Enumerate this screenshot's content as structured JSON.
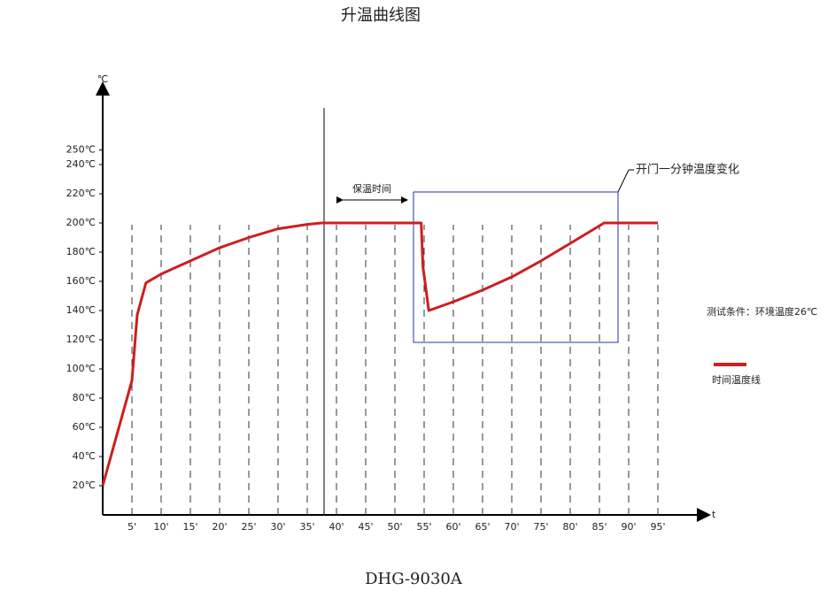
{
  "chart_data": {
    "type": "line",
    "title": "升温曲线图",
    "footer": "DHG-9030A",
    "x_label": "t",
    "y_label": "℃",
    "x": [
      0,
      5,
      5.9,
      7.4,
      10,
      15,
      20,
      25,
      30,
      35,
      37.5,
      40,
      45,
      50,
      54.5,
      54.8,
      55.8,
      60,
      65,
      70,
      75,
      80,
      85.8,
      90,
      95
    ],
    "series": [
      {
        "name": "时间温度线",
        "color": "#cc1f1f",
        "values": [
          20,
          92,
          137,
          159,
          165,
          174,
          183,
          190,
          196,
          199,
          200,
          200,
          200,
          200,
          200,
          170,
          140,
          146,
          154,
          163,
          174,
          186,
          200,
          200,
          200
        ]
      }
    ],
    "xlim": [
      0,
      104
    ],
    "ylim": [
      0,
      292
    ],
    "xticks": [
      {
        "value": 5,
        "label": "5'"
      },
      {
        "value": 10,
        "label": "10'"
      },
      {
        "value": 15,
        "label": "15'"
      },
      {
        "value": 20,
        "label": "20'"
      },
      {
        "value": 25,
        "label": "25'"
      },
      {
        "value": 30,
        "label": "30'"
      },
      {
        "value": 35,
        "label": "35'"
      },
      {
        "value": 40,
        "label": "40'"
      },
      {
        "value": 45,
        "label": "45'"
      },
      {
        "value": 50,
        "label": "50'"
      },
      {
        "value": 55,
        "label": "55'"
      },
      {
        "value": 60,
        "label": "60'"
      },
      {
        "value": 65,
        "label": "65'"
      },
      {
        "value": 70,
        "label": "70'"
      },
      {
        "value": 75,
        "label": "75'"
      },
      {
        "value": 80,
        "label": "80'"
      },
      {
        "value": 85,
        "label": "85'"
      },
      {
        "value": 90,
        "label": "90'"
      },
      {
        "value": 95,
        "label": "95'"
      }
    ],
    "yticks": [
      {
        "value": 20,
        "label": "20℃"
      },
      {
        "value": 40,
        "label": "40℃"
      },
      {
        "value": 60,
        "label": "60℃"
      },
      {
        "value": 80,
        "label": "80℃"
      },
      {
        "value": 100,
        "label": "100℃"
      },
      {
        "value": 120,
        "label": "120℃"
      },
      {
        "value": 140,
        "label": "140℃"
      },
      {
        "value": 160,
        "label": "160℃"
      },
      {
        "value": 180,
        "label": "180℃"
      },
      {
        "value": 200,
        "label": "200℃"
      },
      {
        "value": 220,
        "label": "220℃"
      },
      {
        "value": 240,
        "label": "240℃"
      },
      {
        "value": 250,
        "label": "250℃"
      }
    ],
    "grid": true,
    "annotations": [
      "保温时间",
      "开门一分钟温度变化",
      "测试条件：环境温度26℃"
    ]
  }
}
